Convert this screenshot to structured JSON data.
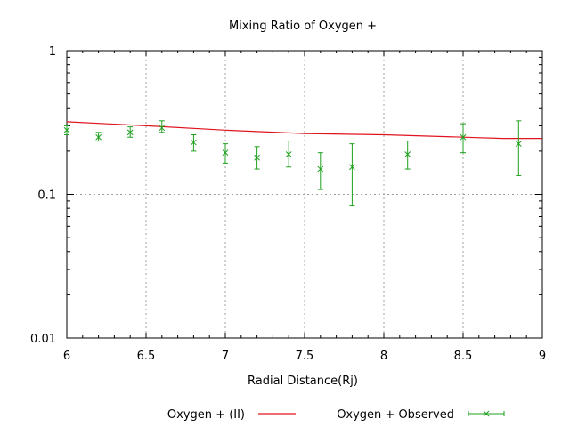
{
  "chart_data": {
    "type": "scatter",
    "title": "Mixing Ratio of Oxygen +",
    "xlabel": "Radial Distance(Rj)",
    "ylabel": "",
    "xlim": [
      6,
      9
    ],
    "ylim": [
      0.01,
      1
    ],
    "yscale": "log",
    "grid": true,
    "legend_position": "bottom",
    "x_ticks": [
      "6",
      "6.5",
      "7",
      "7.5",
      "8",
      "8.5",
      "9"
    ],
    "y_ticks": [
      "1",
      "0.1",
      "0.01"
    ],
    "series": [
      {
        "name": "Oxygen + (II)",
        "style": "line",
        "color": "#e0141e",
        "x": [
          6.0,
          6.5,
          7.0,
          7.5,
          8.0,
          8.5,
          8.75,
          9.0
        ],
        "y": [
          0.32,
          0.3,
          0.28,
          0.265,
          0.26,
          0.25,
          0.245,
          0.245
        ]
      },
      {
        "name": "Oxygen + Observed",
        "style": "points-errorbars",
        "color": "#1ea01e",
        "x": [
          6.0,
          6.2,
          6.4,
          6.6,
          6.8,
          7.0,
          7.2,
          7.4,
          7.6,
          7.8,
          8.15,
          8.5,
          8.85
        ],
        "y": [
          0.28,
          0.25,
          0.27,
          0.29,
          0.23,
          0.195,
          0.18,
          0.19,
          0.15,
          0.155,
          0.19,
          0.25,
          0.225
        ],
        "y_low": [
          0.26,
          0.235,
          0.25,
          0.27,
          0.2,
          0.165,
          0.15,
          0.155,
          0.108,
          0.083,
          0.15,
          0.195,
          0.135
        ],
        "y_high": [
          0.3,
          0.27,
          0.295,
          0.325,
          0.26,
          0.225,
          0.215,
          0.235,
          0.195,
          0.225,
          0.235,
          0.31,
          0.325
        ]
      }
    ]
  }
}
